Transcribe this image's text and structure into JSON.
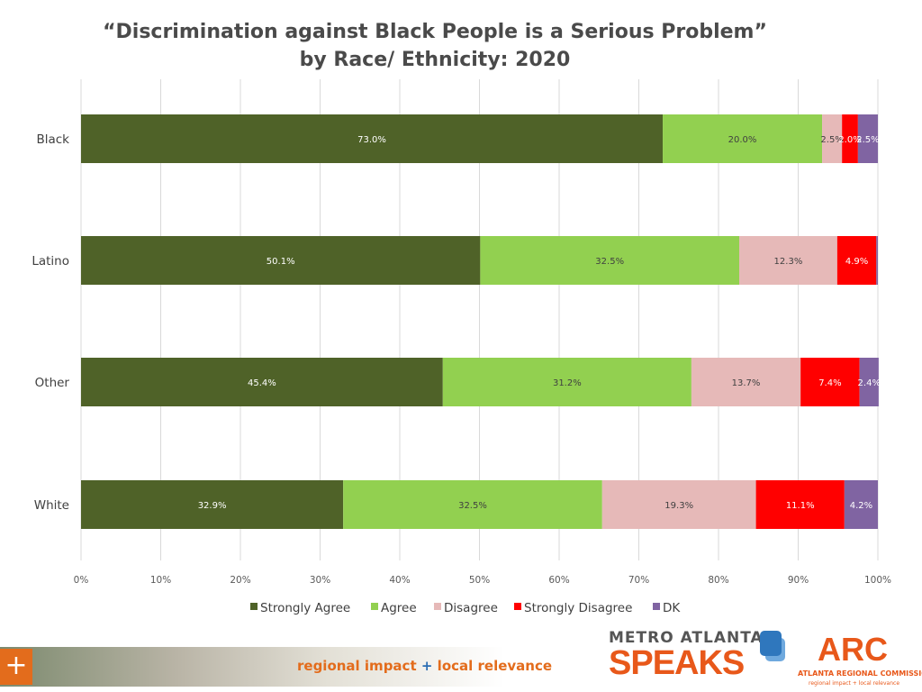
{
  "title_line1": "“Discrimination against Black People is a Serious Problem”",
  "title_line2": "by Race/ Ethnicity: 2020",
  "chart_data": {
    "type": "bar",
    "orientation": "horizontal",
    "stacked": true,
    "categories": [
      "Black",
      "Latino",
      "Other",
      "White"
    ],
    "series": [
      {
        "name": "Strongly Agree",
        "color": "#4f6228",
        "label_color": "#ffffff",
        "values": [
          73.0,
          50.1,
          45.4,
          32.9
        ],
        "labels": [
          "73.0%",
          "50.1%",
          "45.4%",
          "32.9%"
        ]
      },
      {
        "name": "Agree",
        "color": "#92d050",
        "label_color": "#404040",
        "values": [
          20.0,
          32.5,
          31.2,
          32.5
        ],
        "labels": [
          "20.0%",
          "32.5%",
          "31.2%",
          "32.5%"
        ]
      },
      {
        "name": "Disagree",
        "color": "#e6b9b8",
        "label_color": "#404040",
        "values": [
          2.5,
          12.3,
          13.7,
          19.3
        ],
        "labels": [
          "2.5%",
          "12.3%",
          "13.7%",
          "19.3%"
        ]
      },
      {
        "name": "Strongly Disagree",
        "color": "#ff0000",
        "label_color": "#ffffff",
        "values": [
          2.0,
          4.9,
          7.4,
          11.1
        ],
        "labels": [
          "2.0%",
          "4.9%",
          "7.4%",
          "11.1%"
        ]
      },
      {
        "name": "DK",
        "color": "#8064a2",
        "label_color": "#ffffff",
        "values": [
          2.5,
          0.2,
          2.4,
          4.2
        ],
        "labels": [
          "2.5%",
          "",
          "2.4%",
          "4.2%"
        ]
      }
    ],
    "xlim": [
      0,
      100
    ],
    "x_ticks": [
      "0%",
      "10%",
      "20%",
      "30%",
      "40%",
      "50%",
      "60%",
      "70%",
      "80%",
      "90%",
      "100%"
    ],
    "grid": true,
    "legend_position": "bottom"
  },
  "footer": {
    "plus_glyph": "+",
    "tagline_left": "regional impact",
    "tagline_plus": "+",
    "tagline_right": "local relevance",
    "mas_top": "METRO ATLANTA",
    "mas_bottom": "SPEAKS",
    "arc_logo": "ARC",
    "arc_name": "ATLANTA REGIONAL COMMISSION",
    "arc_tagline": "regional impact + local relevance"
  }
}
